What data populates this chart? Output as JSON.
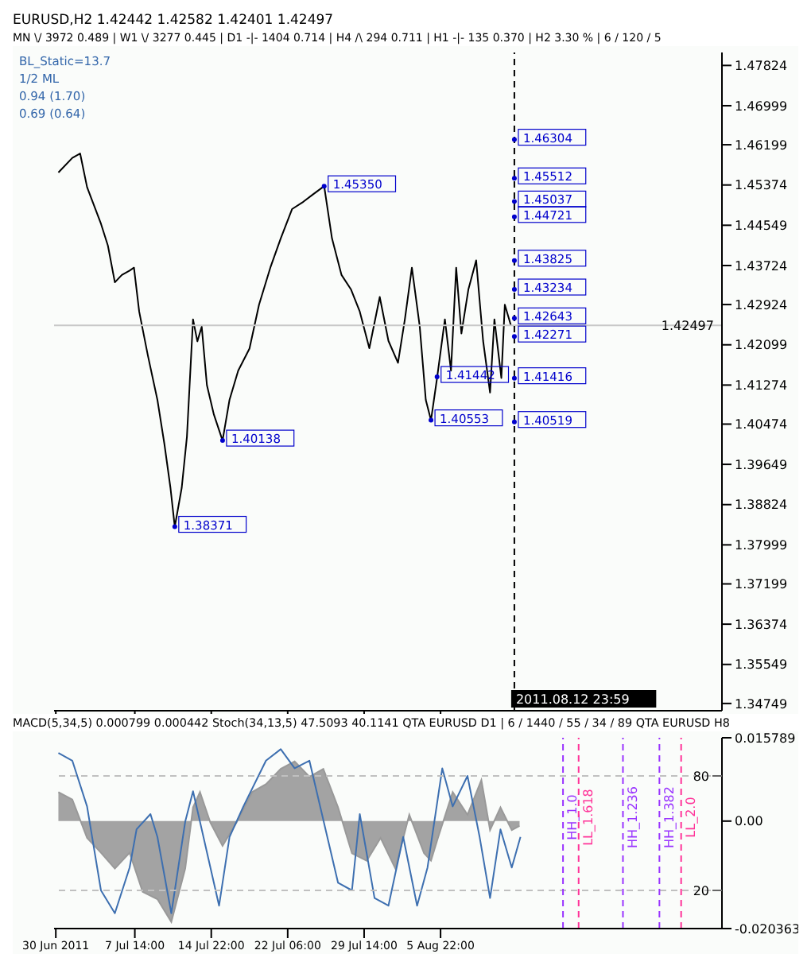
{
  "chart_data": [
    {
      "type": "line",
      "title": "EURUSD,H2  1.42442 1.42582 1.42401 1.42497",
      "subtitle": "MN \\/ 3972   0.489  |  W1 \\/ 3277   0.445  |  D1 -|- 1404   0.714  |  H4 /\\ 294   0.711  |  H1 -|- 135   0.370  |  H2  3.30 %  |  6 / 120 / 5",
      "x": [
        "2011-06-30T06:00",
        "2011-07-01T14:00",
        "2011-07-02T08:00",
        "2011-07-03T00:00",
        "2011-07-04T08:00",
        "2011-07-05T00:00",
        "2011-07-05T16:00",
        "2011-07-06T08:00",
        "2011-07-07T02:00",
        "2011-07-07T12:00",
        "2011-07-08T00:00",
        "2011-07-08T20:00",
        "2011-07-09T18:00",
        "2011-07-10T10:00",
        "2011-07-11T00:00",
        "2011-07-11T10:00",
        "2011-07-12T02:00",
        "2011-07-12T14:00",
        "2011-07-13T04:00",
        "2011-07-13T14:00",
        "2011-07-14T00:00",
        "2011-07-14T12:00",
        "2011-07-15T04:00",
        "2011-07-16T00:00",
        "2011-07-16T16:00",
        "2011-07-17T12:00",
        "2011-07-18T14:00",
        "2011-07-19T12:00",
        "2011-07-20T14:00",
        "2011-07-21T14:00",
        "2011-07-22T16:00",
        "2011-07-23T18:00",
        "2011-07-24T16:00",
        "2011-07-25T18:00",
        "2011-07-26T12:00",
        "2011-07-27T10:00",
        "2011-07-28T08:00",
        "2011-07-29T04:00",
        "2011-07-30T02:00",
        "2011-07-31T02:00",
        "2011-07-31T22:00",
        "2011-08-01T20:00",
        "2011-08-02T12:00",
        "2011-08-03T04:00",
        "2011-08-03T22:00",
        "2011-08-04T12:00",
        "2011-08-05T00:00",
        "2011-08-05T14:00",
        "2011-08-06T08:00",
        "2011-08-06T22:00",
        "2011-08-07T10:00",
        "2011-08-07T22:00",
        "2011-08-08T14:00",
        "2011-08-09T08:00",
        "2011-08-10T00:00",
        "2011-08-10T16:00",
        "2011-08-11T02:00",
        "2011-08-11T18:00",
        "2011-08-12T02:00",
        "2011-08-12T16:00"
      ],
      "series": [
        {
          "color": "#000000",
          "values": [
            1.4563,
            1.4593,
            1.4602,
            1.4533,
            1.4458,
            1.4413,
            1.4338,
            1.4353,
            1.4362,
            1.4368,
            1.4278,
            1.4188,
            1.4097,
            1.4007,
            1.3917,
            1.38371,
            1.3917,
            1.4022,
            1.4262,
            1.4217,
            1.4247,
            1.4127,
            1.4067,
            1.40138,
            1.4097,
            1.4157,
            1.4202,
            1.4292,
            1.4368,
            1.4428,
            1.4488,
            1.4503,
            1.4518,
            1.4535,
            1.4428,
            1.4353,
            1.4323,
            1.4278,
            1.4203,
            1.4308,
            1.4218,
            1.4173,
            1.4263,
            1.4368,
            1.4248,
            1.4097,
            1.40553,
            1.4142,
            1.4262,
            1.4157,
            1.4368,
            1.4233,
            1.4323,
            1.4383,
            1.4218,
            1.4112,
            1.4262,
            1.4142,
            1.4292,
            1.42497
          ]
        }
      ],
      "xlim": [
        "2011-06-29T20:00",
        "2011-09-01T22:00"
      ],
      "xticks": [
        {
          "value": "2011-06-30T00:00",
          "label": null
        },
        {
          "value": "2011-07-07T14:00",
          "label": null
        },
        {
          "value": "2011-07-14T22:00",
          "label": null
        },
        {
          "value": "2011-07-22T06:00",
          "label": null
        },
        {
          "value": "2011-07-29T14:00",
          "label": null
        },
        {
          "value": "2011-08-05T22:00",
          "label": null
        }
      ],
      "ylim": [
        1.346,
        1.4809
      ],
      "yticks": [
        1.47824,
        1.46999,
        1.46199,
        1.45374,
        1.44549,
        1.43724,
        1.42924,
        1.42099,
        1.41274,
        1.40474,
        1.39649,
        1.38824,
        1.37999,
        1.37199,
        1.36374,
        1.35549,
        1.34749
      ],
      "tick_labels": "y",
      "grid": false,
      "legend": false,
      "ref_lines": [
        {
          "axis": "y",
          "value": 1.42497,
          "label": "1.42497",
          "color": "#c8c8c8"
        },
        {
          "axis": "x",
          "value": "2011-08-12T23:59",
          "label": "2011.08.12 23:59",
          "color": "#000000",
          "line_style": "dashed"
        }
      ],
      "annotations": [
        "BL_Static=13.7",
        "1/2 ML",
        "0.94 (1.70)",
        "0.69 (0.64)",
        {
          "text": "1.46304",
          "x": "2011-08-13T00:00",
          "y": 1.46304
        },
        {
          "text": "1.45512",
          "x": "2011-08-13T00:00",
          "y": 1.45512
        },
        {
          "text": "1.45037",
          "x": "2011-08-13T00:00",
          "y": 1.45037
        },
        {
          "text": "1.44721",
          "x": "2011-08-13T00:00",
          "y": 1.44721
        },
        {
          "text": "1.43825",
          "x": "2011-08-13T00:00",
          "y": 1.43825
        },
        {
          "text": "1.43234",
          "x": "2011-08-13T00:00",
          "y": 1.43234
        },
        {
          "text": "1.42643",
          "x": "2011-08-13T00:00",
          "y": 1.42643
        },
        {
          "text": "1.42271",
          "x": "2011-08-13T00:00",
          "y": 1.42271
        },
        {
          "text": "1.41416",
          "x": "2011-08-13T00:00",
          "y": 1.41416
        },
        {
          "text": "1.40519",
          "x": "2011-08-13T00:00",
          "y": 1.40519
        },
        {
          "text": "1.45350",
          "x": "2011-07-25T18:00",
          "y": 1.4535
        },
        {
          "text": "1.41442",
          "x": "2011-08-05T14:00",
          "y": 1.41442
        },
        {
          "text": "1.40553",
          "x": "2011-08-05T00:00",
          "y": 1.40553
        },
        {
          "text": "1.40138",
          "x": "2011-07-16T00:00",
          "y": 1.40138
        },
        {
          "text": "1.38371",
          "x": "2011-07-11T10:00",
          "y": 1.38371
        }
      ]
    },
    {
      "type": "area",
      "title": "MACD(5,34,5) 0.000799 0.000442  Stoch(34,13,5) 47.5093 40.1141  QTA EURUSD D1 | 6 / 1440 / 55 / 34 / 89  QTA EURUSD H8",
      "series": [
        {
          "type": "area",
          "color": "#999999",
          "x": [
            "2011-06-30T06:00",
            "2011-07-01T14:00",
            "2011-07-03T00:00",
            "2011-07-04T08:00",
            "2011-07-05T16:00",
            "2011-07-07T02:00",
            "2011-07-08T08:00",
            "2011-07-09T18:00",
            "2011-07-11T02:00",
            "2011-07-12T10:00",
            "2011-07-13T04:00",
            "2011-07-13T20:00",
            "2011-07-14T20:00",
            "2011-07-16T00:00",
            "2011-07-17T08:00",
            "2011-07-18T20:00",
            "2011-07-20T04:00",
            "2011-07-21T14:00",
            "2011-07-22T22:00",
            "2011-07-24T08:00",
            "2011-07-25T16:00",
            "2011-07-27T02:00",
            "2011-07-28T10:00",
            "2011-07-29T20:00",
            "2011-07-31T04:00",
            "2011-08-01T14:00",
            "2011-08-02T22:00",
            "2011-08-04T08:00",
            "2011-08-05T00:00",
            "2011-08-05T16:00",
            "2011-08-07T02:00",
            "2011-08-08T12:00",
            "2011-08-09T20:00",
            "2011-08-10T16:00",
            "2011-08-11T16:00",
            "2011-08-12T18:00",
            "2011-08-13T12:00"
          ],
          "values": [
            0.0055,
            0.0041,
            -0.0032,
            -0.006,
            -0.009,
            -0.006,
            -0.0134,
            -0.0148,
            -0.0191,
            -0.009,
            0.0026,
            0.0055,
            -0.0003,
            -0.0047,
            -0.0003,
            0.0055,
            0.007,
            0.0099,
            0.0113,
            0.0084,
            0.0099,
            0.0026,
            -0.0061,
            -0.0075,
            -0.0032,
            -0.009,
            0.0012,
            -0.0061,
            -0.0075,
            -0.0032,
            0.0055,
            0.0012,
            0.0078,
            -0.0017,
            0.0026,
            -0.0017,
            -0.0009
          ]
        },
        {
          "type": "line",
          "axis": "y2",
          "color": "#3d6fb0",
          "x": [
            "2011-06-30T06:00",
            "2011-07-01T14:00",
            "2011-07-03T00:00",
            "2011-07-04T08:00",
            "2011-07-05T16:00",
            "2011-07-07T02:00",
            "2011-07-07T18:00",
            "2011-07-09T02:00",
            "2011-07-09T18:00",
            "2011-07-11T02:00",
            "2011-07-12T10:00",
            "2011-07-13T04:00",
            "2011-07-14T12:00",
            "2011-07-15T16:00",
            "2011-07-16T16:00",
            "2011-07-18T00:00",
            "2011-07-20T04:00",
            "2011-07-21T14:00",
            "2011-07-22T22:00",
            "2011-07-24T08:00",
            "2011-07-27T02:00",
            "2011-07-28T10:00",
            "2011-07-29T04:00",
            "2011-07-30T14:00",
            "2011-07-31T22:00",
            "2011-08-02T08:00",
            "2011-08-03T16:00",
            "2011-08-04T16:00",
            "2011-08-06T02:00",
            "2011-08-07T02:00",
            "2011-08-08T12:00",
            "2011-08-09T16:00",
            "2011-08-10T16:00",
            "2011-08-11T16:00",
            "2011-08-12T18:00",
            "2011-08-13T14:00"
          ],
          "values": [
            92,
            88,
            64,
            20,
            8,
            32,
            52,
            60,
            48,
            8,
            56,
            72,
            40,
            12,
            48,
            64,
            88,
            94,
            84,
            88,
            24,
            20,
            60,
            16,
            12,
            48,
            12,
            32,
            84,
            64,
            80,
            48,
            16,
            52,
            32,
            48
          ]
        }
      ],
      "xlim": [
        "2011-06-29T20:00",
        "2011-09-01T22:00"
      ],
      "xticks": [
        {
          "value": "2011-06-30T00:00",
          "label": "30 Jun 2011"
        },
        {
          "value": "2011-07-07T14:00",
          "label": "7 Jul 14:00"
        },
        {
          "value": "2011-07-14T22:00",
          "label": "14 Jul 22:00"
        },
        {
          "value": "2011-07-22T06:00",
          "label": "22 Jul 06:00"
        },
        {
          "value": "2011-07-29T14:00",
          "label": "29 Jul 14:00"
        },
        {
          "value": "2011-08-05T22:00",
          "label": "5 Aug 22:00"
        }
      ],
      "ylim": [
        -0.020363,
        0.015789
      ],
      "yticks": [
        {
          "value": 0.015789,
          "label": "0.015789"
        },
        {
          "value": 0,
          "label": "0.00"
        },
        {
          "value": -0.020363,
          "label": "-0.020363"
        }
      ],
      "y2lim": [
        0,
        100
      ],
      "y2ticks": [
        80,
        20
      ],
      "grid": false,
      "legend": false,
      "ref_lines": [
        {
          "axis": "y2",
          "value": 80,
          "color": "#c0c0c0",
          "line_style": "dashed"
        },
        {
          "axis": "y2",
          "value": 20,
          "color": "#c0c0c0",
          "line_style": "dashed"
        },
        {
          "axis": "x",
          "value": "2011-08-17T16:00",
          "label": "HH_1.0",
          "color": "#9933ff",
          "line_style": "dashed"
        },
        {
          "axis": "x",
          "value": "2011-08-19T04:00",
          "label": "LL_1.618",
          "color": "#ff3399",
          "line_style": "dashed"
        },
        {
          "axis": "x",
          "value": "2011-08-23T10:00",
          "label": "HH_1.236",
          "color": "#9933ff",
          "line_style": "dashed"
        },
        {
          "axis": "x",
          "value": "2011-08-26T22:00",
          "label": "HH_1.382",
          "color": "#9933ff",
          "line_style": "dashed"
        },
        {
          "axis": "x",
          "value": "2011-08-29T00:00",
          "label": "LL_2.0",
          "color": "#ff3399",
          "line_style": "dashed"
        }
      ]
    }
  ]
}
